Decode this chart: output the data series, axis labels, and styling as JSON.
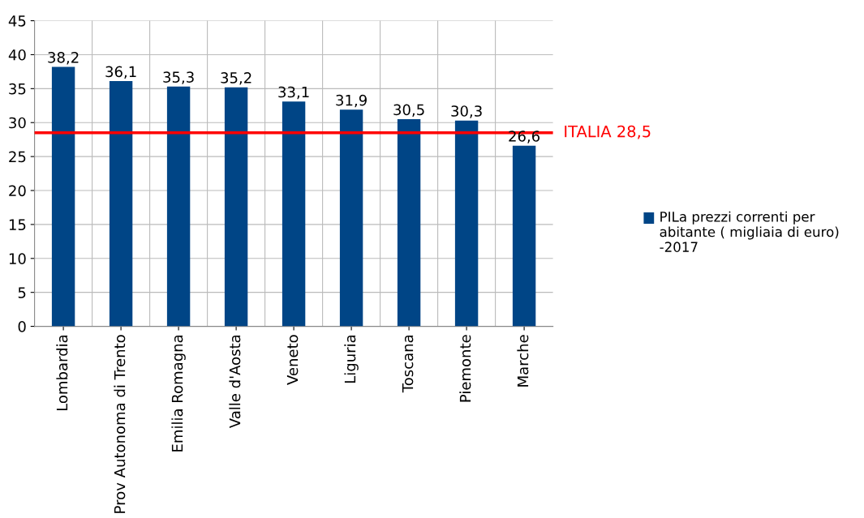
{
  "chart_data": {
    "type": "bar",
    "categories": [
      "Lombardia",
      "Prov Autonoma di Trento",
      "Emilia Romagna",
      "Valle d'Aosta",
      "Veneto",
      "Liguria",
      "Toscana",
      "Piemonte",
      "Marche"
    ],
    "series": [
      {
        "name": "PILa prezzi correnti per abitante ( migliaia di euro) -2017",
        "color": "#004586",
        "values": [
          38.2,
          36.1,
          35.3,
          35.2,
          33.1,
          31.9,
          30.5,
          30.3,
          26.6
        ]
      }
    ],
    "value_labels": [
      "38,2",
      "36,1",
      "35,3",
      "35,2",
      "33,1",
      "31,9",
      "30,5",
      "30,3",
      "26,6"
    ],
    "ylim": [
      0,
      45
    ],
    "yticks": [
      0,
      5,
      10,
      15,
      20,
      25,
      30,
      35,
      40,
      45
    ],
    "ref_lines": [
      {
        "axis": "y",
        "value": 28.5,
        "label": "ITALIA 28,5",
        "color": "#ff0000",
        "line_style": "solid"
      }
    ],
    "grid": true,
    "legend": "right"
  }
}
